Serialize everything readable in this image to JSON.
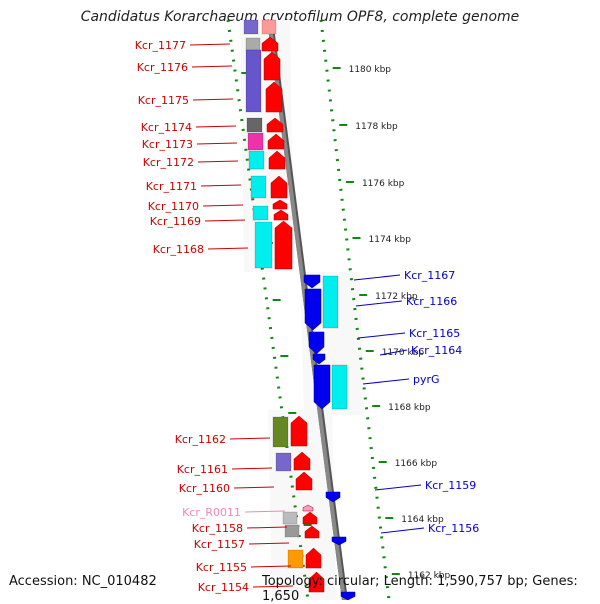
{
  "header": {
    "title": "Candidatus Korarchaeum cryptofilum OPF8, complete genome"
  },
  "footer": {
    "accession": "Accession: NC_010482",
    "summary": "Topology: circular; Length: 1,590,757 bp; Genes: 1,650"
  },
  "colors": {
    "forward_label": "#cc0000",
    "reverse_label": "#0000cc",
    "rna_label": "#ee88bb",
    "forward_arrow": "#ff0000",
    "reverse_arrow": "#0000ee",
    "backbone": "#888888",
    "ruler": "#118811"
  },
  "scale": {
    "ticks": [
      "1180 kbp",
      "1178 kbp",
      "1176 kbp",
      "1174 kbp",
      "1172 kbp",
      "1170 kbp",
      "1168 kbp",
      "1166 kbp",
      "1164 kbp",
      "1162 kbp"
    ]
  },
  "genes": {
    "forward": [
      "Kcr_1177",
      "Kcr_1176",
      "Kcr_1175",
      "Kcr_1174",
      "Kcr_1173",
      "Kcr_1172",
      "Kcr_1171",
      "Kcr_1170",
      "Kcr_1169",
      "Kcr_1168",
      "Kcr_1162",
      "Kcr_1161",
      "Kcr_1160",
      "Kcr_R0011",
      "Kcr_1158",
      "Kcr_1157",
      "Kcr_1155",
      "Kcr_1154"
    ],
    "reverse": [
      "Kcr_1167",
      "Kcr_1166",
      "Kcr_1165",
      "Kcr_1164",
      "pyrG",
      "Kcr_1159",
      "Kcr_1156"
    ]
  }
}
